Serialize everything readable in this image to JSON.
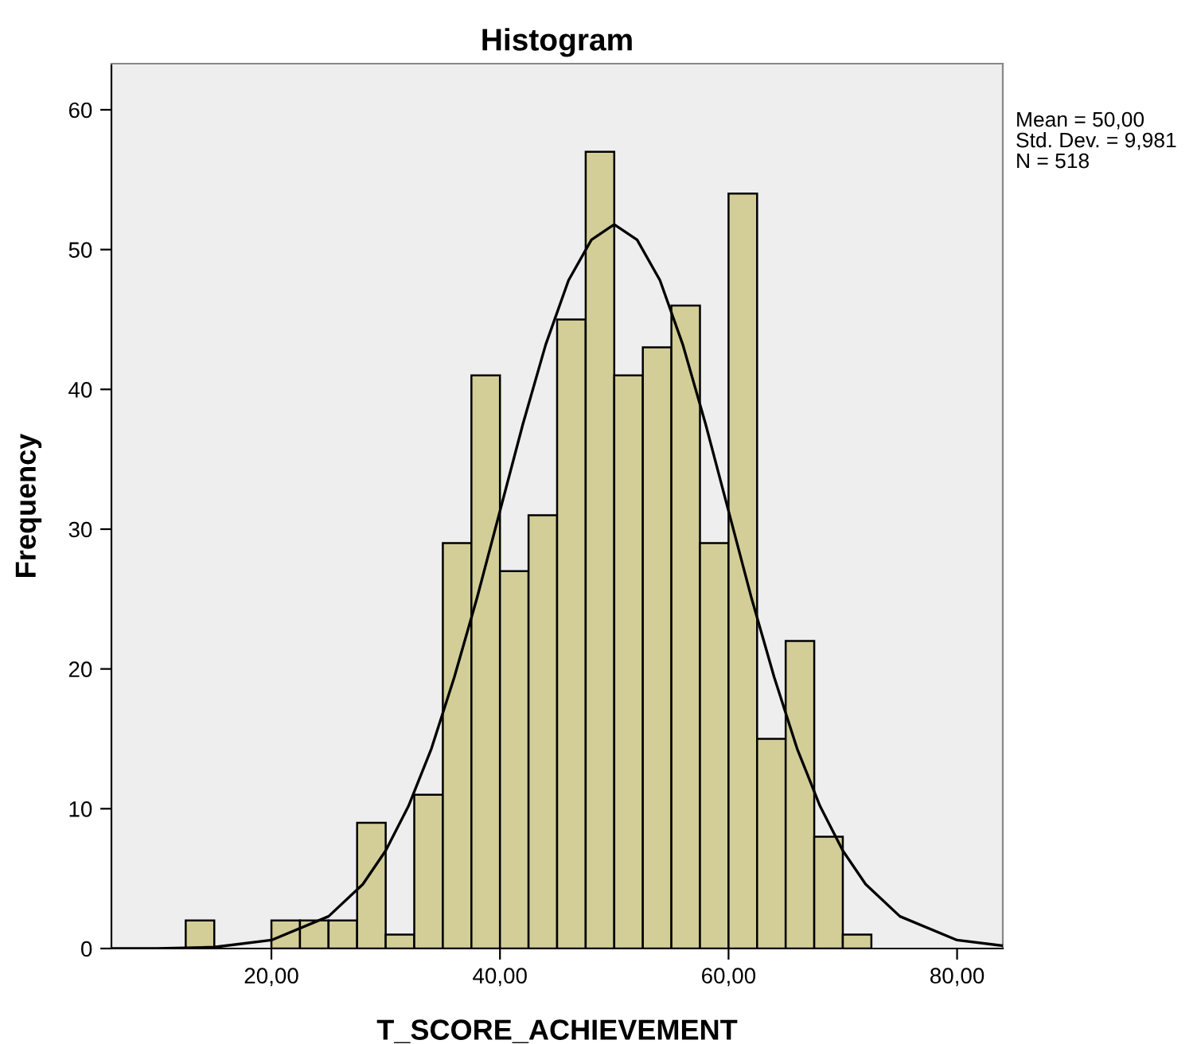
{
  "chart_data": {
    "type": "histogram",
    "title": "Histogram",
    "xlabel": "T_SCORE_ACHIEVEMENT",
    "ylabel": "Frequency",
    "bins": [
      12.5,
      15,
      17.5,
      20,
      22.5,
      25,
      27.5,
      30,
      32.5,
      35,
      37.5,
      40,
      42.5,
      45,
      47.5,
      50,
      52.5,
      55,
      57.5,
      60,
      62.5,
      65,
      67.5,
      70,
      72.5
    ],
    "values": [
      2,
      0,
      0,
      2,
      2,
      2,
      9,
      1,
      11,
      29,
      41,
      27,
      31,
      45,
      57,
      41,
      43,
      46,
      29,
      54,
      15,
      22,
      8,
      1
    ],
    "color": "#d3ce97",
    "series": [
      {
        "type": "line",
        "color": "#000000",
        "x": [
          6,
          10,
          15,
          20,
          25,
          28,
          30,
          32,
          34,
          36,
          38,
          40,
          42,
          44,
          46,
          48,
          50,
          52,
          54,
          56,
          58,
          60,
          62,
          64,
          66,
          68,
          70,
          72,
          75,
          80,
          84
        ],
        "values": [
          0.0,
          0.0,
          0.1,
          0.6,
          2.3,
          4.6,
          7.0,
          10.2,
          14.3,
          19.4,
          25.1,
          31.3,
          37.5,
          43.2,
          47.8,
          50.7,
          51.8,
          50.7,
          47.8,
          43.2,
          37.5,
          31.3,
          25.1,
          19.4,
          14.3,
          10.2,
          7.0,
          4.6,
          2.3,
          0.6,
          0.2
        ]
      }
    ],
    "xlim": [
      6,
      84
    ],
    "ylim": [
      0,
      63.3
    ],
    "xticks": [
      {
        "value": 20,
        "label": "20,00"
      },
      {
        "value": 40,
        "label": "40,00"
      },
      {
        "value": 60,
        "label": "60,00"
      },
      {
        "value": 80,
        "label": "80,00"
      }
    ],
    "yticks": [
      0,
      10,
      20,
      30,
      40,
      50,
      60
    ],
    "grid": false,
    "annotations": [
      "Mean = 50,00",
      "Std. Dev. = 9,981",
      "N = 518"
    ]
  }
}
